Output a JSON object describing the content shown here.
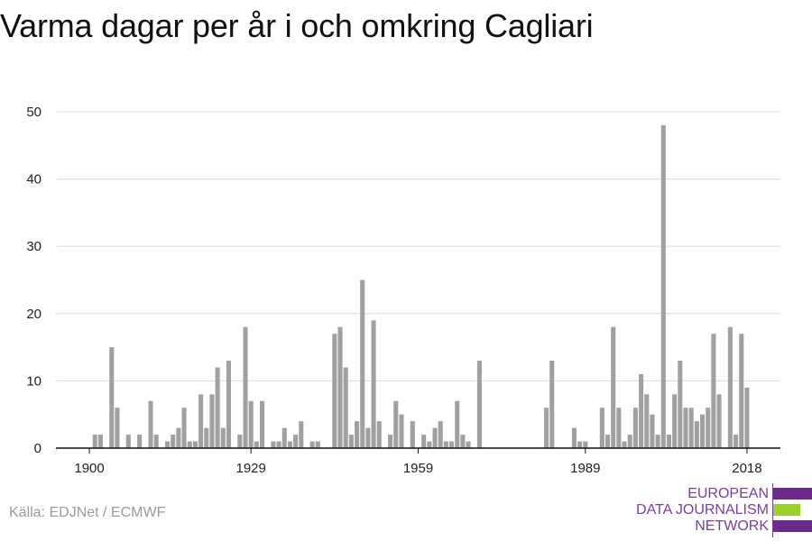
{
  "title": "Varma dagar per år i och omkring Cagliari",
  "source": "Källa: EDJNet / ECMWF",
  "logo": {
    "lines": [
      "EUROPEAN",
      "DATA JOURNALISM",
      "NETWORK"
    ],
    "colors": {
      "purple": "#6b2a8c",
      "green": "#9bd12a"
    }
  },
  "chart_data": {
    "type": "bar",
    "title": "Varma dagar per år i och omkring Cagliari",
    "xlabel": "",
    "ylabel": "",
    "bar_color": "#a0a0a0",
    "grid": true,
    "x_ticks": [
      1900,
      1929,
      1959,
      1989,
      2018
    ],
    "y_ticks": [
      0,
      10,
      20,
      30,
      40,
      50
    ],
    "xlim": [
      1894,
      2024
    ],
    "ylim": [
      0,
      50
    ],
    "x": [
      1900,
      1901,
      1902,
      1903,
      1904,
      1905,
      1906,
      1907,
      1908,
      1909,
      1910,
      1911,
      1912,
      1913,
      1914,
      1915,
      1916,
      1917,
      1918,
      1919,
      1920,
      1921,
      1922,
      1923,
      1924,
      1925,
      1926,
      1927,
      1928,
      1929,
      1930,
      1931,
      1932,
      1933,
      1934,
      1935,
      1936,
      1937,
      1938,
      1939,
      1940,
      1941,
      1942,
      1943,
      1944,
      1945,
      1946,
      1947,
      1948,
      1949,
      1950,
      1951,
      1952,
      1953,
      1954,
      1955,
      1956,
      1957,
      1958,
      1959,
      1960,
      1961,
      1962,
      1963,
      1964,
      1965,
      1966,
      1967,
      1968,
      1969,
      1970,
      1971,
      1972,
      1973,
      1974,
      1975,
      1976,
      1977,
      1978,
      1979,
      1980,
      1981,
      1982,
      1983,
      1984,
      1985,
      1986,
      1987,
      1988,
      1989,
      1990,
      1991,
      1992,
      1993,
      1994,
      1995,
      1996,
      1997,
      1998,
      1999,
      2000,
      2001,
      2002,
      2003,
      2004,
      2005,
      2006,
      2007,
      2008,
      2009,
      2010,
      2011,
      2012,
      2013,
      2014,
      2015,
      2016,
      2017,
      2018,
      2019
    ],
    "values": [
      0,
      2,
      2,
      0,
      15,
      6,
      0,
      2,
      0,
      2,
      0,
      7,
      2,
      0,
      1,
      2,
      3,
      6,
      1,
      1,
      8,
      3,
      8,
      12,
      3,
      13,
      0,
      2,
      18,
      7,
      1,
      7,
      0,
      1,
      1,
      3,
      1,
      2,
      4,
      0,
      1,
      1,
      0,
      0,
      17,
      18,
      12,
      2,
      4,
      25,
      3,
      19,
      4,
      0,
      2,
      7,
      5,
      0,
      4,
      0,
      2,
      1,
      3,
      4,
      1,
      1,
      7,
      2,
      1,
      0,
      13,
      0,
      0,
      0,
      0,
      0,
      0,
      0,
      0,
      0,
      0,
      0,
      6,
      13,
      0,
      0,
      0,
      3,
      1,
      1,
      0,
      0,
      6,
      2,
      18,
      6,
      1,
      2,
      6,
      11,
      8,
      5,
      2,
      48,
      2,
      8,
      13,
      6,
      6,
      4,
      5,
      6,
      17,
      8,
      0,
      18,
      2,
      17,
      9,
      0
    ]
  }
}
